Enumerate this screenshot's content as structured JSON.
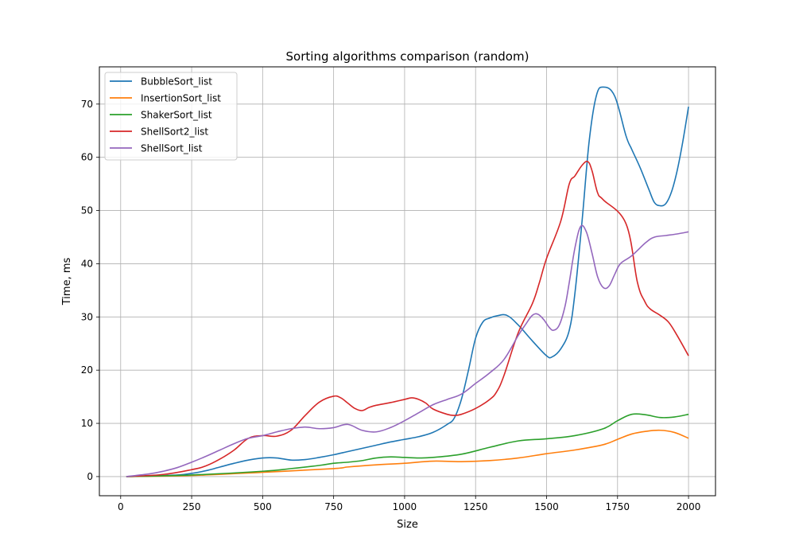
{
  "chart_data": {
    "type": "line",
    "title": "Sorting algorithms comparison (random)",
    "xlabel": "Size",
    "ylabel": "Time, ms",
    "xlim": [
      -75,
      2095
    ],
    "ylim": [
      -3.6,
      77
    ],
    "xticks": [
      0,
      250,
      500,
      750,
      1000,
      1250,
      1500,
      1750,
      2000
    ],
    "yticks": [
      0,
      10,
      20,
      30,
      40,
      50,
      60,
      70
    ],
    "grid": true,
    "legend": "top-left",
    "series": [
      {
        "name": "BubbleSort_list",
        "color": "#1f77b4",
        "points": [
          [
            20,
            0
          ],
          [
            100,
            0.1
          ],
          [
            200,
            0.3
          ],
          [
            250,
            0.6
          ],
          [
            300,
            1.1
          ],
          [
            350,
            1.8
          ],
          [
            400,
            2.5
          ],
          [
            450,
            3.1
          ],
          [
            500,
            3.5
          ],
          [
            550,
            3.5
          ],
          [
            600,
            3.1
          ],
          [
            650,
            3.2
          ],
          [
            700,
            3.6
          ],
          [
            750,
            4.1
          ],
          [
            800,
            4.7
          ],
          [
            850,
            5.3
          ],
          [
            900,
            5.9
          ],
          [
            950,
            6.5
          ],
          [
            1000,
            7.0
          ],
          [
            1050,
            7.5
          ],
          [
            1100,
            8.3
          ],
          [
            1150,
            9.8
          ],
          [
            1175,
            11.0
          ],
          [
            1200,
            14.5
          ],
          [
            1225,
            20.0
          ],
          [
            1250,
            26.0
          ],
          [
            1275,
            29.0
          ],
          [
            1300,
            29.8
          ],
          [
            1325,
            30.2
          ],
          [
            1360,
            30.3
          ],
          [
            1400,
            28.5
          ],
          [
            1450,
            25.5
          ],
          [
            1500,
            22.7
          ],
          [
            1520,
            22.5
          ],
          [
            1550,
            24.0
          ],
          [
            1580,
            27.5
          ],
          [
            1600,
            34.5
          ],
          [
            1625,
            48.0
          ],
          [
            1650,
            63.0
          ],
          [
            1675,
            71.5
          ],
          [
            1700,
            73.2
          ],
          [
            1740,
            71.5
          ],
          [
            1780,
            64.0
          ],
          [
            1800,
            61.5
          ],
          [
            1830,
            58.0
          ],
          [
            1860,
            54.0
          ],
          [
            1880,
            51.5
          ],
          [
            1900,
            50.9
          ],
          [
            1920,
            51.3
          ],
          [
            1940,
            53.5
          ],
          [
            1960,
            57.5
          ],
          [
            1980,
            63.0
          ],
          [
            2000,
            69.5
          ]
        ]
      },
      {
        "name": "InsertionSort_list",
        "color": "#ff7f0e",
        "points": [
          [
            20,
            0
          ],
          [
            250,
            0.2
          ],
          [
            500,
            0.8
          ],
          [
            750,
            1.5
          ],
          [
            800,
            1.8
          ],
          [
            900,
            2.2
          ],
          [
            1000,
            2.5
          ],
          [
            1100,
            2.9
          ],
          [
            1200,
            2.8
          ],
          [
            1300,
            3.0
          ],
          [
            1400,
            3.5
          ],
          [
            1500,
            4.3
          ],
          [
            1600,
            5.0
          ],
          [
            1700,
            6.0
          ],
          [
            1750,
            7.0
          ],
          [
            1800,
            8.0
          ],
          [
            1850,
            8.5
          ],
          [
            1900,
            8.7
          ],
          [
            1950,
            8.3
          ],
          [
            2000,
            7.2
          ]
        ]
      },
      {
        "name": "ShakerSort_list",
        "color": "#2ca02c",
        "points": [
          [
            20,
            0
          ],
          [
            250,
            0.3
          ],
          [
            500,
            1.0
          ],
          [
            600,
            1.5
          ],
          [
            700,
            2.1
          ],
          [
            750,
            2.5
          ],
          [
            800,
            2.7
          ],
          [
            850,
            3.0
          ],
          [
            900,
            3.5
          ],
          [
            950,
            3.7
          ],
          [
            1000,
            3.6
          ],
          [
            1050,
            3.5
          ],
          [
            1100,
            3.6
          ],
          [
            1200,
            4.2
          ],
          [
            1300,
            5.5
          ],
          [
            1400,
            6.7
          ],
          [
            1500,
            7.1
          ],
          [
            1600,
            7.7
          ],
          [
            1700,
            9.0
          ],
          [
            1750,
            10.5
          ],
          [
            1800,
            11.7
          ],
          [
            1850,
            11.6
          ],
          [
            1900,
            11.1
          ],
          [
            1950,
            11.2
          ],
          [
            2000,
            11.7
          ]
        ]
      },
      {
        "name": "ShellSort2_list",
        "color": "#d62728",
        "points": [
          [
            20,
            0
          ],
          [
            150,
            0.4
          ],
          [
            250,
            1.3
          ],
          [
            300,
            2.0
          ],
          [
            350,
            3.3
          ],
          [
            400,
            5.0
          ],
          [
            450,
            7.2
          ],
          [
            500,
            7.7
          ],
          [
            550,
            7.6
          ],
          [
            600,
            8.7
          ],
          [
            650,
            11.5
          ],
          [
            700,
            14.0
          ],
          [
            750,
            15.1
          ],
          [
            775,
            14.8
          ],
          [
            800,
            13.8
          ],
          [
            825,
            12.8
          ],
          [
            850,
            12.4
          ],
          [
            875,
            13.0
          ],
          [
            900,
            13.4
          ],
          [
            950,
            13.9
          ],
          [
            1000,
            14.5
          ],
          [
            1025,
            14.8
          ],
          [
            1050,
            14.5
          ],
          [
            1075,
            13.8
          ],
          [
            1100,
            12.7
          ],
          [
            1150,
            11.7
          ],
          [
            1175,
            11.5
          ],
          [
            1200,
            11.7
          ],
          [
            1250,
            12.8
          ],
          [
            1300,
            14.5
          ],
          [
            1325,
            16.0
          ],
          [
            1350,
            19.0
          ],
          [
            1400,
            27.0
          ],
          [
            1450,
            32.5
          ],
          [
            1475,
            36.5
          ],
          [
            1500,
            41.0
          ],
          [
            1550,
            48.0
          ],
          [
            1580,
            55.0
          ],
          [
            1600,
            56.5
          ],
          [
            1625,
            58.5
          ],
          [
            1645,
            59.2
          ],
          [
            1660,
            57.5
          ],
          [
            1680,
            53.3
          ],
          [
            1700,
            52.0
          ],
          [
            1780,
            47.5
          ],
          [
            1820,
            36.5
          ],
          [
            1845,
            33.0
          ],
          [
            1865,
            31.5
          ],
          [
            1900,
            30.3
          ],
          [
            1930,
            29.0
          ],
          [
            1960,
            26.5
          ],
          [
            2000,
            22.7
          ]
        ]
      },
      {
        "name": "ShellSort_list",
        "color": "#9467bd",
        "points": [
          [
            20,
            0
          ],
          [
            100,
            0.5
          ],
          [
            150,
            1.0
          ],
          [
            200,
            1.7
          ],
          [
            250,
            2.7
          ],
          [
            300,
            3.8
          ],
          [
            350,
            5.0
          ],
          [
            400,
            6.2
          ],
          [
            450,
            7.2
          ],
          [
            500,
            7.7
          ],
          [
            550,
            8.4
          ],
          [
            600,
            9.0
          ],
          [
            650,
            9.3
          ],
          [
            700,
            9.0
          ],
          [
            750,
            9.2
          ],
          [
            800,
            9.8
          ],
          [
            850,
            8.7
          ],
          [
            900,
            8.4
          ],
          [
            950,
            9.2
          ],
          [
            1000,
            10.5
          ],
          [
            1050,
            12.0
          ],
          [
            1100,
            13.5
          ],
          [
            1150,
            14.5
          ],
          [
            1200,
            15.5
          ],
          [
            1250,
            17.5
          ],
          [
            1300,
            19.5
          ],
          [
            1350,
            22.0
          ],
          [
            1400,
            26.5
          ],
          [
            1425,
            28.5
          ],
          [
            1450,
            30.3
          ],
          [
            1470,
            30.5
          ],
          [
            1490,
            29.5
          ],
          [
            1510,
            28.0
          ],
          [
            1525,
            27.5
          ],
          [
            1545,
            28.5
          ],
          [
            1565,
            32.0
          ],
          [
            1580,
            36.5
          ],
          [
            1600,
            43.0
          ],
          [
            1620,
            47.0
          ],
          [
            1640,
            46.0
          ],
          [
            1660,
            42.0
          ],
          [
            1680,
            37.5
          ],
          [
            1700,
            35.5
          ],
          [
            1720,
            35.8
          ],
          [
            1740,
            38.0
          ],
          [
            1760,
            40.0
          ],
          [
            1800,
            41.5
          ],
          [
            1850,
            44.0
          ],
          [
            1880,
            45.0
          ],
          [
            1920,
            45.3
          ],
          [
            1960,
            45.6
          ],
          [
            2000,
            46.0
          ]
        ]
      }
    ]
  }
}
